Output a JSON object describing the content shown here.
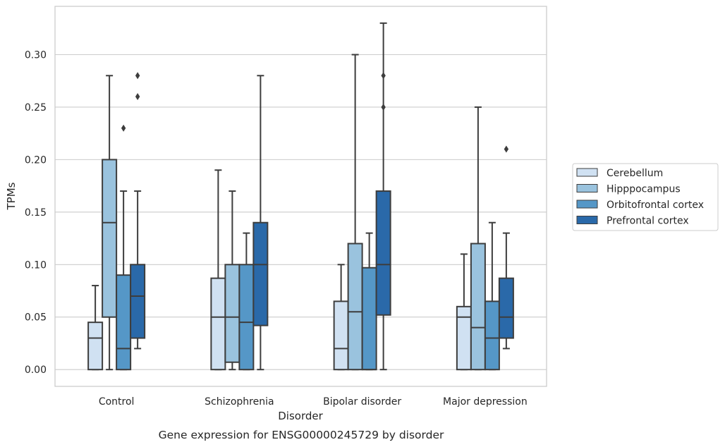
{
  "chart_data": {
    "type": "boxplot",
    "caption": "Gene expression for ENSG00000245729 by disorder",
    "xlabel": "Disorder",
    "ylabel": "TPMs",
    "ylim": [
      -0.016,
      0.346
    ],
    "yticks": [
      "0.00",
      "0.05",
      "0.10",
      "0.15",
      "0.20",
      "0.25",
      "0.30"
    ],
    "grid": true,
    "legend_position": "right",
    "categories": [
      "Control",
      "Schizophrenia",
      "Bipolar disorder",
      "Major depression"
    ],
    "series": [
      {
        "name": "Cerebellum",
        "color": "#d0e1f2",
        "boxes": [
          {
            "whisker_low": 0.0,
            "q1": 0.0,
            "median": 0.03,
            "q3": 0.045,
            "whisker_high": 0.08,
            "outliers": []
          },
          {
            "whisker_low": 0.0,
            "q1": 0.0,
            "median": 0.05,
            "q3": 0.087,
            "whisker_high": 0.19,
            "outliers": []
          },
          {
            "whisker_low": 0.0,
            "q1": 0.0,
            "median": 0.02,
            "q3": 0.065,
            "whisker_high": 0.1,
            "outliers": []
          },
          {
            "whisker_low": 0.0,
            "q1": 0.0,
            "median": 0.05,
            "q3": 0.06,
            "whisker_high": 0.11,
            "outliers": []
          }
        ]
      },
      {
        "name": "Hipppocampus",
        "color": "#9ac3de",
        "boxes": [
          {
            "whisker_low": 0.0,
            "q1": 0.05,
            "median": 0.14,
            "q3": 0.2,
            "whisker_high": 0.28,
            "outliers": []
          },
          {
            "whisker_low": 0.0,
            "q1": 0.007,
            "median": 0.05,
            "q3": 0.1,
            "whisker_high": 0.17,
            "outliers": []
          },
          {
            "whisker_low": 0.0,
            "q1": 0.0,
            "median": 0.055,
            "q3": 0.12,
            "whisker_high": 0.3,
            "outliers": []
          },
          {
            "whisker_low": 0.0,
            "q1": 0.0,
            "median": 0.04,
            "q3": 0.12,
            "whisker_high": 0.25,
            "outliers": []
          }
        ]
      },
      {
        "name": "Orbitofrontal cortex",
        "color": "#5597c7",
        "boxes": [
          {
            "whisker_low": 0.0,
            "q1": 0.0,
            "median": 0.02,
            "q3": 0.09,
            "whisker_high": 0.17,
            "outliers": [
              0.23
            ]
          },
          {
            "whisker_low": 0.0,
            "q1": 0.0,
            "median": 0.045,
            "q3": 0.1,
            "whisker_high": 0.13,
            "outliers": []
          },
          {
            "whisker_low": 0.0,
            "q1": 0.0,
            "median": 0.0,
            "q3": 0.097,
            "whisker_high": 0.13,
            "outliers": []
          },
          {
            "whisker_low": 0.0,
            "q1": 0.0,
            "median": 0.03,
            "q3": 0.065,
            "whisker_high": 0.14,
            "outliers": []
          }
        ]
      },
      {
        "name": "Prefrontal cortex",
        "color": "#2a69a9",
        "boxes": [
          {
            "whisker_low": 0.02,
            "q1": 0.03,
            "median": 0.07,
            "q3": 0.1,
            "whisker_high": 0.17,
            "outliers": [
              0.26,
              0.28
            ]
          },
          {
            "whisker_low": 0.0,
            "q1": 0.042,
            "median": 0.1,
            "q3": 0.14,
            "whisker_high": 0.28,
            "outliers": []
          },
          {
            "whisker_low": 0.0,
            "q1": 0.052,
            "median": 0.1,
            "q3": 0.17,
            "whisker_high": 0.33,
            "outliers": [
              0.25,
              0.28
            ]
          },
          {
            "whisker_low": 0.02,
            "q1": 0.03,
            "median": 0.05,
            "q3": 0.087,
            "whisker_high": 0.13,
            "outliers": [
              0.21
            ]
          }
        ]
      }
    ]
  }
}
